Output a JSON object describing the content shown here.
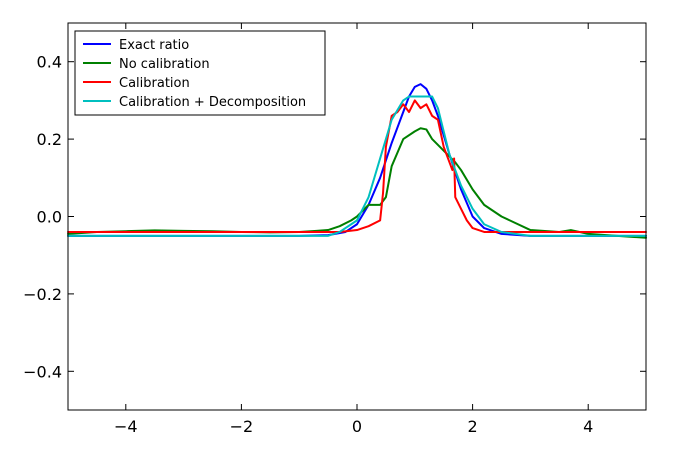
{
  "chart_data": {
    "type": "line",
    "title": "",
    "xlabel": "",
    "ylabel": "",
    "xlim": [
      -5,
      5
    ],
    "ylim": [
      -0.5,
      0.5
    ],
    "grid": false,
    "legend_location": "top-left",
    "x_ticks": [
      -4,
      -2,
      0,
      2,
      4
    ],
    "x_tick_labels": [
      "−4",
      "−2",
      "0",
      "2",
      "4"
    ],
    "y_ticks": [
      -0.4,
      -0.2,
      0.0,
      0.2,
      0.4
    ],
    "y_tick_labels": [
      "−0.4",
      "−0.2",
      "0.0",
      "0.2",
      "0.4"
    ],
    "series": [
      {
        "name": "Exact ratio",
        "color": "#0000ff",
        "x": [
          -5,
          -1,
          -0.5,
          -0.2,
          0,
          0.2,
          0.4,
          0.6,
          0.8,
          0.9,
          1.0,
          1.1,
          1.2,
          1.3,
          1.4,
          1.5,
          1.6,
          1.8,
          2.0,
          2.2,
          2.5,
          3.0,
          5
        ],
        "y": [
          -0.05,
          -0.05,
          -0.048,
          -0.04,
          -0.02,
          0.03,
          0.1,
          0.19,
          0.27,
          0.31,
          0.335,
          0.342,
          0.33,
          0.3,
          0.26,
          0.21,
          0.16,
          0.07,
          0.0,
          -0.03,
          -0.045,
          -0.05,
          -0.05
        ]
      },
      {
        "name": "No calibration",
        "color": "#008000",
        "x": [
          -5,
          -4.5,
          -4,
          -3.5,
          -3,
          -2.5,
          -2,
          -1.5,
          -1,
          -0.7,
          -0.5,
          -0.3,
          -0.1,
          0,
          0.2,
          0.4,
          0.5,
          0.6,
          0.8,
          1.0,
          1.1,
          1.2,
          1.3,
          1.5,
          1.7,
          1.8,
          2.0,
          2.2,
          2.5,
          3.0,
          3.5,
          3.7,
          4.0,
          4.5,
          5
        ],
        "y": [
          -0.045,
          -0.04,
          -0.038,
          -0.036,
          -0.037,
          -0.038,
          -0.04,
          -0.041,
          -0.04,
          -0.037,
          -0.035,
          -0.025,
          -0.01,
          0.0,
          0.03,
          0.03,
          0.05,
          0.13,
          0.2,
          0.22,
          0.228,
          0.225,
          0.2,
          0.17,
          0.14,
          0.12,
          0.07,
          0.03,
          0.0,
          -0.035,
          -0.04,
          -0.035,
          -0.045,
          -0.05,
          -0.055
        ]
      },
      {
        "name": "Calibration",
        "color": "#ff0000",
        "x": [
          -5,
          -1,
          -0.3,
          0,
          0.2,
          0.4,
          0.45,
          0.5,
          0.6,
          0.7,
          0.8,
          0.9,
          1.0,
          1.1,
          1.2,
          1.3,
          1.4,
          1.5,
          1.6,
          1.65,
          1.68,
          1.7,
          1.8,
          1.9,
          2.0,
          2.2,
          5
        ],
        "y": [
          -0.04,
          -0.04,
          -0.04,
          -0.035,
          -0.025,
          -0.01,
          0.06,
          0.18,
          0.26,
          0.27,
          0.29,
          0.27,
          0.3,
          0.28,
          0.29,
          0.26,
          0.25,
          0.18,
          0.14,
          0.12,
          0.15,
          0.05,
          0.02,
          -0.01,
          -0.03,
          -0.04,
          -0.04
        ]
      },
      {
        "name": "Calibration + Decomposition",
        "color": "#00bfbf",
        "x": [
          -5,
          -1,
          -0.5,
          -0.3,
          0,
          0.2,
          0.4,
          0.6,
          0.8,
          0.9,
          1.0,
          1.3,
          1.4,
          1.5,
          1.6,
          1.8,
          2.0,
          2.2,
          2.5,
          3.0,
          5
        ],
        "y": [
          -0.05,
          -0.05,
          -0.05,
          -0.04,
          -0.01,
          0.05,
          0.15,
          0.25,
          0.3,
          0.31,
          0.31,
          0.31,
          0.28,
          0.22,
          0.16,
          0.08,
          0.02,
          -0.02,
          -0.04,
          -0.05,
          -0.05
        ]
      }
    ]
  }
}
